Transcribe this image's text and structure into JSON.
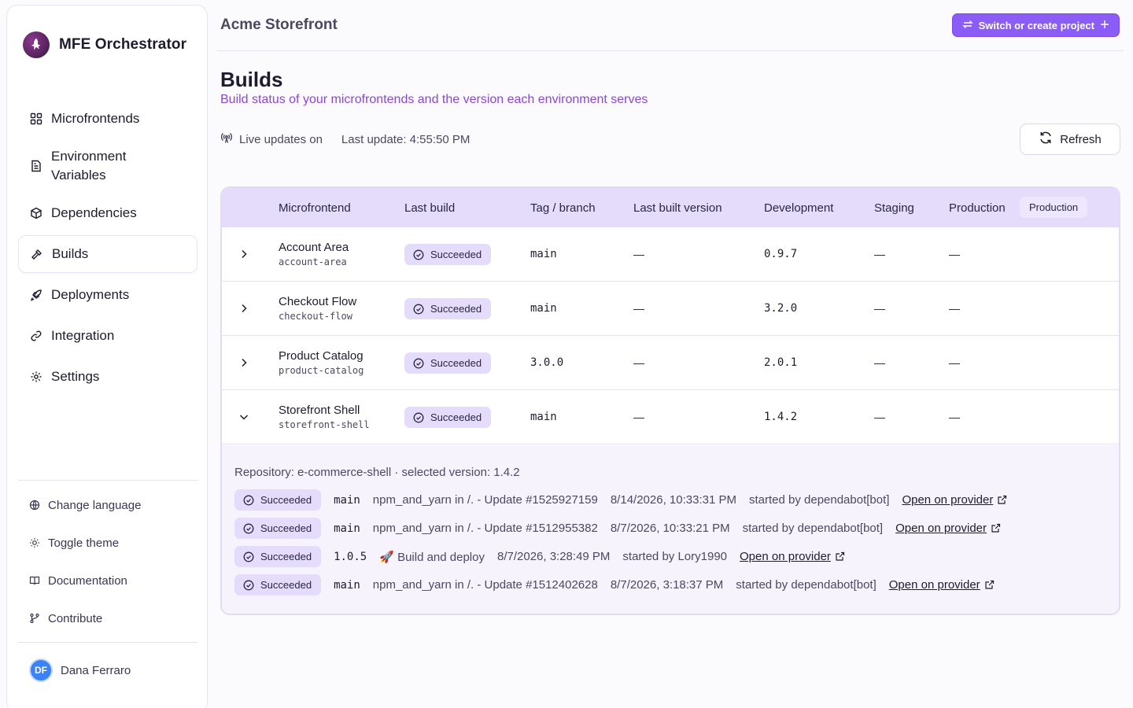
{
  "brand": {
    "name": "MFE Orchestrator"
  },
  "sidebar": {
    "items": [
      {
        "label": "Microfrontends",
        "icon": "grid-icon"
      },
      {
        "label": "Environment Variables",
        "icon": "file-text-icon"
      },
      {
        "label": "Dependencies",
        "icon": "package-icon"
      },
      {
        "label": "Builds",
        "icon": "hammer-icon",
        "active": true
      },
      {
        "label": "Deployments",
        "icon": "rocket-icon"
      },
      {
        "label": "Integration",
        "icon": "link-icon"
      },
      {
        "label": "Settings",
        "icon": "gear-icon"
      }
    ],
    "utilities": [
      {
        "label": "Change language",
        "icon": "globe-icon"
      },
      {
        "label": "Toggle theme",
        "icon": "sun-icon"
      },
      {
        "label": "Documentation",
        "icon": "book-icon"
      },
      {
        "label": "Contribute",
        "icon": "git-branch-icon"
      }
    ],
    "user": {
      "initials": "DF",
      "name": "Dana Ferraro"
    }
  },
  "header": {
    "project": "Acme Storefront",
    "switch_label": "Switch or create project"
  },
  "page": {
    "title": "Builds",
    "subtitle": "Build status of your microfrontends and the version each environment serves",
    "live_label": "Live updates on",
    "last_update": "Last update: 4:55:50 PM",
    "refresh_label": "Refresh"
  },
  "table": {
    "columns": {
      "microfrontend": "Microfrontend",
      "last_build": "Last build",
      "tag_branch": "Tag / branch",
      "last_built_version": "Last built version",
      "development": "Development",
      "staging": "Staging",
      "production": "Production",
      "production_chip": "Production"
    },
    "rows": [
      {
        "name": "Account Area",
        "slug": "account-area",
        "status": "Succeeded",
        "tag": "main",
        "last_built": "—",
        "dev": "0.9.7",
        "staging": "—",
        "prod": "—",
        "expanded": false
      },
      {
        "name": "Checkout Flow",
        "slug": "checkout-flow",
        "status": "Succeeded",
        "tag": "main",
        "last_built": "—",
        "dev": "3.2.0",
        "staging": "—",
        "prod": "—",
        "expanded": false
      },
      {
        "name": "Product Catalog",
        "slug": "product-catalog",
        "status": "Succeeded",
        "tag": "3.0.0",
        "last_built": "—",
        "dev": "2.0.1",
        "staging": "—",
        "prod": "—",
        "expanded": false
      },
      {
        "name": "Storefront Shell",
        "slug": "storefront-shell",
        "status": "Succeeded",
        "tag": "main",
        "last_built": "—",
        "dev": "1.4.2",
        "staging": "—",
        "prod": "—",
        "expanded": true
      }
    ],
    "detail": {
      "repo_line": "Repository: e-commerce-shell · selected version: 1.4.2",
      "history": [
        {
          "status": "Succeeded",
          "ref": "main",
          "message": "npm_and_yarn in /. - Update #1525927159",
          "when": "8/14/2026, 10:33:31 PM",
          "by": "started by dependabot[bot]",
          "link": "Open on provider"
        },
        {
          "status": "Succeeded",
          "ref": "main",
          "message": "npm_and_yarn in /. - Update #1512955382",
          "when": "8/7/2026, 10:33:21 PM",
          "by": "started by dependabot[bot]",
          "link": "Open on provider"
        },
        {
          "status": "Succeeded",
          "ref": "1.0.5",
          "message": "🚀 Build and deploy",
          "when": "8/7/2026, 3:28:49 PM",
          "by": "started by Lory1990",
          "link": "Open on provider"
        },
        {
          "status": "Succeeded",
          "ref": "main",
          "message": "npm_and_yarn in /. - Update #1512402628",
          "when": "8/7/2026, 3:18:37 PM",
          "by": "started by dependabot[bot]",
          "link": "Open on provider"
        }
      ]
    }
  },
  "colors": {
    "accent": "#8b5cf6",
    "header_bg": "#e5dcfb",
    "subtitle": "#8b47d8"
  }
}
